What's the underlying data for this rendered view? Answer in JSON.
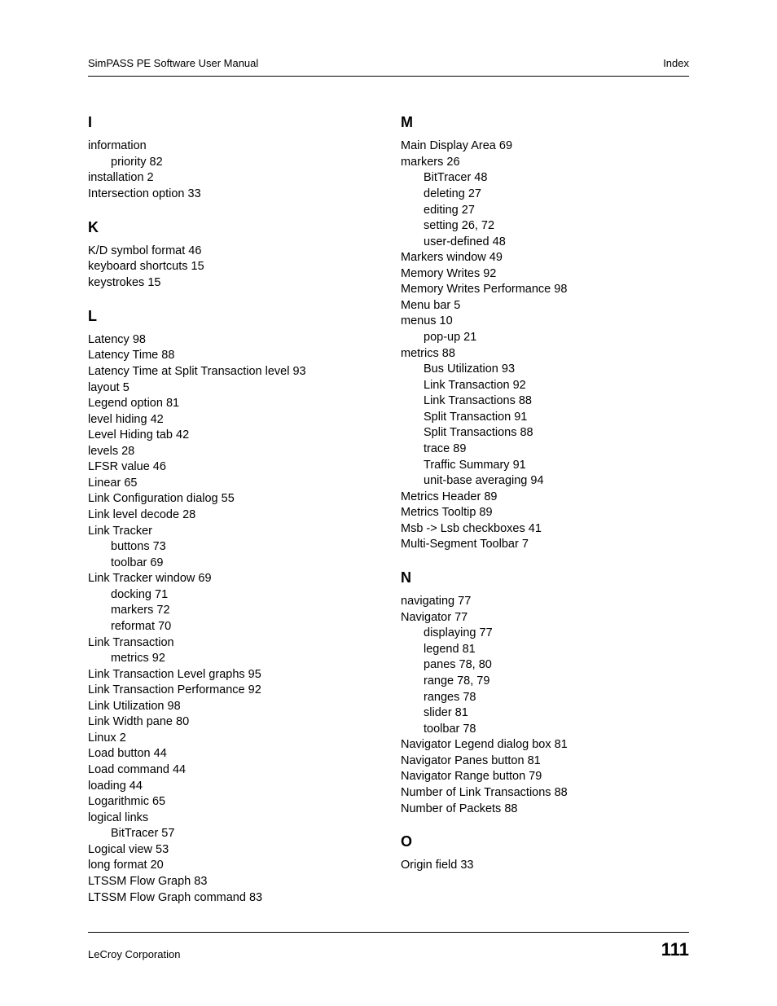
{
  "header": {
    "left": "SimPASS PE Software User Manual",
    "right": "Index"
  },
  "footer": {
    "left": "LeCroy Corporation",
    "page_number": "111"
  },
  "left_column": [
    {
      "letter": "I"
    },
    {
      "t": "information"
    },
    {
      "t": "priority 82",
      "sub": true
    },
    {
      "t": "installation 2"
    },
    {
      "t": "Intersection option 33"
    },
    {
      "letter": "K"
    },
    {
      "t": "K/D symbol format 46"
    },
    {
      "t": "keyboard shortcuts 15"
    },
    {
      "t": "keystrokes 15"
    },
    {
      "letter": "L"
    },
    {
      "t": "Latency 98"
    },
    {
      "t": "Latency Time 88"
    },
    {
      "t": "Latency Time at Split Transaction level 93"
    },
    {
      "t": "layout 5"
    },
    {
      "t": "Legend option 81"
    },
    {
      "t": "level hiding 42"
    },
    {
      "t": "Level Hiding tab 42"
    },
    {
      "t": "levels 28"
    },
    {
      "t": "LFSR value 46"
    },
    {
      "t": "Linear 65"
    },
    {
      "t": "Link Configuration dialog 55"
    },
    {
      "t": "Link level decode 28"
    },
    {
      "t": "Link Tracker"
    },
    {
      "t": "buttons 73",
      "sub": true
    },
    {
      "t": "toolbar 69",
      "sub": true
    },
    {
      "t": "Link Tracker window 69"
    },
    {
      "t": "docking 71",
      "sub": true
    },
    {
      "t": "markers 72",
      "sub": true
    },
    {
      "t": "reformat 70",
      "sub": true
    },
    {
      "t": "Link Transaction"
    },
    {
      "t": "metrics 92",
      "sub": true
    },
    {
      "t": "Link Transaction Level graphs 95"
    },
    {
      "t": "Link Transaction Performance 92"
    },
    {
      "t": "Link Utilization 98"
    },
    {
      "t": "Link Width pane 80"
    },
    {
      "t": "Linux 2"
    },
    {
      "t": "Load button 44"
    },
    {
      "t": "Load command 44"
    },
    {
      "t": "loading 44"
    },
    {
      "t": "Logarithmic 65"
    },
    {
      "t": "logical links"
    },
    {
      "t": "BitTracer 57",
      "sub": true
    },
    {
      "t": "Logical view 53"
    },
    {
      "t": "long format 20"
    },
    {
      "t": "LTSSM Flow Graph 83"
    },
    {
      "t": "LTSSM Flow Graph command 83"
    }
  ],
  "right_column": [
    {
      "letter": "M"
    },
    {
      "t": "Main Display Area 69"
    },
    {
      "t": "markers 26"
    },
    {
      "t": "BitTracer 48",
      "sub": true
    },
    {
      "t": "deleting 27",
      "sub": true
    },
    {
      "t": "editing 27",
      "sub": true
    },
    {
      "t": "setting 26, 72",
      "sub": true
    },
    {
      "t": "user-defined 48",
      "sub": true
    },
    {
      "t": "Markers window 49"
    },
    {
      "t": "Memory Writes 92"
    },
    {
      "t": "Memory Writes Performance 98"
    },
    {
      "t": "Menu bar 5"
    },
    {
      "t": "menus 10"
    },
    {
      "t": "pop-up 21",
      "sub": true
    },
    {
      "t": "metrics 88"
    },
    {
      "t": "Bus Utilization 93",
      "sub": true
    },
    {
      "t": "Link Transaction 92",
      "sub": true
    },
    {
      "t": "Link Transactions 88",
      "sub": true
    },
    {
      "t": "Split Transaction 91",
      "sub": true
    },
    {
      "t": "Split Transactions 88",
      "sub": true
    },
    {
      "t": "trace 89",
      "sub": true
    },
    {
      "t": "Traffic Summary 91",
      "sub": true
    },
    {
      "t": "unit-base averaging 94",
      "sub": true
    },
    {
      "t": "Metrics Header 89"
    },
    {
      "t": "Metrics Tooltip 89"
    },
    {
      "t": "Msb -> Lsb checkboxes 41"
    },
    {
      "t": "Multi-Segment Toolbar 7"
    },
    {
      "letter": "N"
    },
    {
      "t": "navigating 77"
    },
    {
      "t": "Navigator 77"
    },
    {
      "t": "displaying 77",
      "sub": true
    },
    {
      "t": "legend 81",
      "sub": true
    },
    {
      "t": "panes 78, 80",
      "sub": true
    },
    {
      "t": "range 78, 79",
      "sub": true
    },
    {
      "t": "ranges 78",
      "sub": true
    },
    {
      "t": "slider 81",
      "sub": true
    },
    {
      "t": "toolbar 78",
      "sub": true
    },
    {
      "t": "Navigator Legend dialog box 81"
    },
    {
      "t": "Navigator Panes button 81"
    },
    {
      "t": "Navigator Range button 79"
    },
    {
      "t": "Number of Link Transactions 88"
    },
    {
      "t": "Number of Packets 88"
    },
    {
      "letter": "O"
    },
    {
      "t": "Origin field 33"
    }
  ]
}
